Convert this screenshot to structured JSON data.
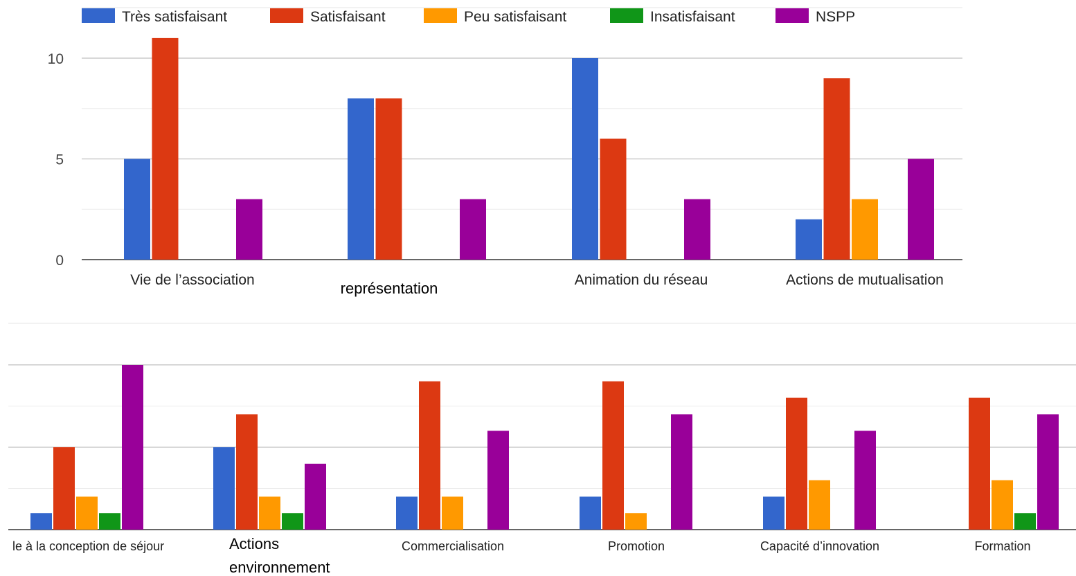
{
  "chart_data": [
    {
      "type": "bar",
      "legend_position": "top",
      "grid": true,
      "ylim": [
        0,
        12
      ],
      "yticks": [
        "0",
        "5",
        "10"
      ],
      "categories": [
        "Vie de l’association",
        "représentation",
        "Animation du réseau",
        "Actions de mutualisation"
      ],
      "series": [
        {
          "name": "Très satisfaisant",
          "color": "#3366cc",
          "values": [
            5,
            8,
            10,
            2
          ]
        },
        {
          "name": "Satisfaisant",
          "color": "#dc3912",
          "values": [
            11,
            8,
            6,
            9
          ]
        },
        {
          "name": "Peu satisfaisant",
          "color": "#ff9900",
          "values": [
            0,
            0,
            0,
            3
          ]
        },
        {
          "name": "Insatisfaisant",
          "color": "#109618",
          "values": [
            0,
            0,
            0,
            0
          ]
        },
        {
          "name": "NSPP",
          "color": "#990099",
          "values": [
            3,
            3,
            3,
            5
          ]
        }
      ]
    },
    {
      "type": "bar",
      "grid": true,
      "ylim": [
        0,
        12
      ],
      "categories": [
        "le à la conception de séjour",
        "Actions environnement",
        "Commercialisation",
        "Promotion",
        "Capacité d’innovation",
        "Formation"
      ],
      "series": [
        {
          "name": "Très satisfaisant",
          "color": "#3366cc",
          "values": [
            1,
            5,
            2,
            2,
            2,
            0
          ]
        },
        {
          "name": "Satisfaisant",
          "color": "#dc3912",
          "values": [
            5,
            7,
            9,
            9,
            8,
            8
          ]
        },
        {
          "name": "Peu satisfaisant",
          "color": "#ff9900",
          "values": [
            2,
            2,
            2,
            1,
            3,
            3
          ]
        },
        {
          "name": "Insatisfaisant",
          "color": "#109618",
          "values": [
            1,
            1,
            0,
            0,
            0,
            1
          ]
        },
        {
          "name": "NSPP",
          "color": "#990099",
          "values": [
            10,
            4,
            6,
            7,
            6,
            7
          ]
        }
      ]
    }
  ]
}
